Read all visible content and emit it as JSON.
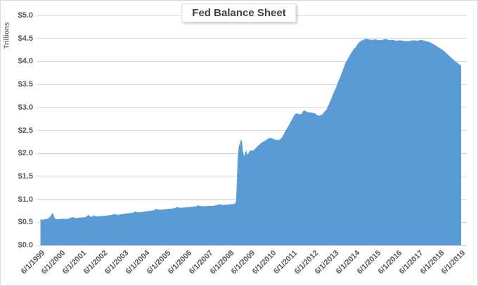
{
  "title": "Fed Balance Sheet",
  "axis": {
    "y_unit_label": "Trillions",
    "y_ticks": [
      "$5.0",
      "$4.5",
      "$4.0",
      "$3.5",
      "$3.0",
      "$2.5",
      "$2.0",
      "$1.5",
      "$1.0",
      "$0.5",
      "$0.0"
    ],
    "x_ticks": [
      "6/1/1999",
      "6/1/2000",
      "6/1/2001",
      "6/1/2002",
      "6/1/2003",
      "6/1/2004",
      "6/1/2005",
      "6/1/2006",
      "6/1/2007",
      "6/1/2008",
      "6/1/2009",
      "6/1/2010",
      "6/1/2011",
      "6/1/2012",
      "6/1/2013",
      "6/1/2014",
      "6/1/2015",
      "6/1/2016",
      "6/1/2017",
      "6/1/2018",
      "6/1/2019"
    ]
  },
  "colors": {
    "area_fill": "#5B9BD5",
    "gridline": "#D9D9D9",
    "axis_text": "#595959",
    "title_text": "#404040",
    "unit_text": "#737373",
    "border": "#D9D9D9"
  },
  "chart_data": {
    "type": "area",
    "title": "Fed Balance Sheet",
    "ylabel": "Trillions",
    "xlabel": "",
    "grid": true,
    "legend": false,
    "ylim": [
      0,
      5
    ],
    "y_tick_step": 0.5,
    "xlim": [
      1999.4167,
      2019.4167
    ],
    "x_unit": "decimal year (ticks at June 1 each year)",
    "value_unit": "trillions of dollars",
    "points": [
      [
        1999.42,
        0.57
      ],
      [
        1999.5,
        0.555
      ],
      [
        1999.58,
        0.56
      ],
      [
        1999.67,
        0.565
      ],
      [
        1999.75,
        0.575
      ],
      [
        1999.83,
        0.6
      ],
      [
        1999.92,
        0.645
      ],
      [
        2000.0,
        0.71
      ],
      [
        2000.05,
        0.64
      ],
      [
        2000.1,
        0.585
      ],
      [
        2000.17,
        0.57
      ],
      [
        2000.25,
        0.565
      ],
      [
        2000.33,
        0.57
      ],
      [
        2000.42,
        0.575
      ],
      [
        2000.5,
        0.58
      ],
      [
        2000.58,
        0.57
      ],
      [
        2000.67,
        0.575
      ],
      [
        2000.75,
        0.58
      ],
      [
        2000.83,
        0.59
      ],
      [
        2000.92,
        0.615
      ],
      [
        2001.0,
        0.605
      ],
      [
        2001.08,
        0.59
      ],
      [
        2001.17,
        0.595
      ],
      [
        2001.25,
        0.6
      ],
      [
        2001.33,
        0.6
      ],
      [
        2001.42,
        0.605
      ],
      [
        2001.5,
        0.61
      ],
      [
        2001.58,
        0.615
      ],
      [
        2001.7,
        0.66
      ],
      [
        2001.78,
        0.625
      ],
      [
        2001.87,
        0.62
      ],
      [
        2001.95,
        0.655
      ],
      [
        2002.04,
        0.63
      ],
      [
        2002.12,
        0.625
      ],
      [
        2002.21,
        0.63
      ],
      [
        2002.3,
        0.635
      ],
      [
        2002.42,
        0.64
      ],
      [
        2002.54,
        0.645
      ],
      [
        2002.62,
        0.65
      ],
      [
        2002.71,
        0.655
      ],
      [
        2002.83,
        0.66
      ],
      [
        2002.92,
        0.685
      ],
      [
        2003.0,
        0.67
      ],
      [
        2003.08,
        0.66
      ],
      [
        2003.21,
        0.67
      ],
      [
        2003.33,
        0.68
      ],
      [
        2003.46,
        0.69
      ],
      [
        2003.58,
        0.695
      ],
      [
        2003.71,
        0.7
      ],
      [
        2003.83,
        0.71
      ],
      [
        2003.92,
        0.735
      ],
      [
        2004.0,
        0.72
      ],
      [
        2004.08,
        0.715
      ],
      [
        2004.21,
        0.72
      ],
      [
        2004.33,
        0.73
      ],
      [
        2004.46,
        0.74
      ],
      [
        2004.58,
        0.745
      ],
      [
        2004.71,
        0.755
      ],
      [
        2004.83,
        0.765
      ],
      [
        2004.92,
        0.79
      ],
      [
        2005.0,
        0.775
      ],
      [
        2005.08,
        0.77
      ],
      [
        2005.21,
        0.775
      ],
      [
        2005.33,
        0.78
      ],
      [
        2005.46,
        0.79
      ],
      [
        2005.58,
        0.795
      ],
      [
        2005.71,
        0.8
      ],
      [
        2005.83,
        0.81
      ],
      [
        2005.92,
        0.835
      ],
      [
        2006.0,
        0.82
      ],
      [
        2006.08,
        0.815
      ],
      [
        2006.21,
        0.82
      ],
      [
        2006.33,
        0.825
      ],
      [
        2006.46,
        0.83
      ],
      [
        2006.58,
        0.835
      ],
      [
        2006.71,
        0.84
      ],
      [
        2006.83,
        0.85
      ],
      [
        2006.92,
        0.87
      ],
      [
        2007.0,
        0.855
      ],
      [
        2007.08,
        0.85
      ],
      [
        2007.21,
        0.85
      ],
      [
        2007.33,
        0.855
      ],
      [
        2007.46,
        0.86
      ],
      [
        2007.58,
        0.855
      ],
      [
        2007.71,
        0.865
      ],
      [
        2007.83,
        0.875
      ],
      [
        2007.92,
        0.89
      ],
      [
        2008.0,
        0.885
      ],
      [
        2008.08,
        0.875
      ],
      [
        2008.21,
        0.88
      ],
      [
        2008.33,
        0.885
      ],
      [
        2008.46,
        0.89
      ],
      [
        2008.58,
        0.895
      ],
      [
        2008.67,
        0.91
      ],
      [
        2008.72,
        0.97
      ],
      [
        2008.76,
        1.45
      ],
      [
        2008.8,
        1.95
      ],
      [
        2008.85,
        2.15
      ],
      [
        2008.9,
        2.21
      ],
      [
        2008.96,
        2.31
      ],
      [
        2009.0,
        2.24
      ],
      [
        2009.04,
        2.06
      ],
      [
        2009.1,
        1.93
      ],
      [
        2009.15,
        2.0
      ],
      [
        2009.19,
        2.07
      ],
      [
        2009.23,
        2.01
      ],
      [
        2009.27,
        1.96
      ],
      [
        2009.33,
        2.03
      ],
      [
        2009.42,
        2.07
      ],
      [
        2009.5,
        2.05
      ],
      [
        2009.58,
        2.08
      ],
      [
        2009.67,
        2.12
      ],
      [
        2009.75,
        2.16
      ],
      [
        2009.83,
        2.19
      ],
      [
        2009.92,
        2.23
      ],
      [
        2010.0,
        2.25
      ],
      [
        2010.08,
        2.27
      ],
      [
        2010.17,
        2.3
      ],
      [
        2010.25,
        2.32
      ],
      [
        2010.33,
        2.34
      ],
      [
        2010.42,
        2.33
      ],
      [
        2010.5,
        2.31
      ],
      [
        2010.58,
        2.3
      ],
      [
        2010.67,
        2.29
      ],
      [
        2010.75,
        2.29
      ],
      [
        2010.83,
        2.31
      ],
      [
        2010.92,
        2.36
      ],
      [
        2011.0,
        2.43
      ],
      [
        2011.08,
        2.5
      ],
      [
        2011.17,
        2.57
      ],
      [
        2011.25,
        2.63
      ],
      [
        2011.33,
        2.7
      ],
      [
        2011.42,
        2.77
      ],
      [
        2011.5,
        2.84
      ],
      [
        2011.58,
        2.87
      ],
      [
        2011.67,
        2.86
      ],
      [
        2011.75,
        2.85
      ],
      [
        2011.83,
        2.86
      ],
      [
        2011.92,
        2.93
      ],
      [
        2012.0,
        2.93
      ],
      [
        2012.08,
        2.9
      ],
      [
        2012.17,
        2.89
      ],
      [
        2012.25,
        2.89
      ],
      [
        2012.33,
        2.88
      ],
      [
        2012.42,
        2.88
      ],
      [
        2012.5,
        2.86
      ],
      [
        2012.58,
        2.83
      ],
      [
        2012.67,
        2.82
      ],
      [
        2012.75,
        2.83
      ],
      [
        2012.83,
        2.85
      ],
      [
        2012.92,
        2.91
      ],
      [
        2013.0,
        2.94
      ],
      [
        2013.08,
        3.02
      ],
      [
        2013.17,
        3.11
      ],
      [
        2013.25,
        3.2
      ],
      [
        2013.33,
        3.29
      ],
      [
        2013.42,
        3.38
      ],
      [
        2013.5,
        3.47
      ],
      [
        2013.58,
        3.57
      ],
      [
        2013.67,
        3.66
      ],
      [
        2013.75,
        3.76
      ],
      [
        2013.83,
        3.86
      ],
      [
        2013.92,
        3.97
      ],
      [
        2014.0,
        4.03
      ],
      [
        2014.08,
        4.1
      ],
      [
        2014.17,
        4.17
      ],
      [
        2014.25,
        4.23
      ],
      [
        2014.33,
        4.28
      ],
      [
        2014.42,
        4.32
      ],
      [
        2014.5,
        4.38
      ],
      [
        2014.58,
        4.42
      ],
      [
        2014.67,
        4.45
      ],
      [
        2014.75,
        4.47
      ],
      [
        2014.83,
        4.48
      ],
      [
        2014.92,
        4.5
      ],
      [
        2015.0,
        4.48
      ],
      [
        2015.17,
        4.47
      ],
      [
        2015.33,
        4.48
      ],
      [
        2015.5,
        4.46
      ],
      [
        2015.67,
        4.47
      ],
      [
        2015.83,
        4.49
      ],
      [
        2016.0,
        4.46
      ],
      [
        2016.17,
        4.47
      ],
      [
        2016.33,
        4.45
      ],
      [
        2016.5,
        4.46
      ],
      [
        2016.67,
        4.45
      ],
      [
        2016.83,
        4.44
      ],
      [
        2017.0,
        4.45
      ],
      [
        2017.17,
        4.46
      ],
      [
        2017.33,
        4.45
      ],
      [
        2017.5,
        4.47
      ],
      [
        2017.67,
        4.45
      ],
      [
        2017.83,
        4.43
      ],
      [
        2017.92,
        4.42
      ],
      [
        2018.0,
        4.4
      ],
      [
        2018.17,
        4.36
      ],
      [
        2018.33,
        4.31
      ],
      [
        2018.5,
        4.26
      ],
      [
        2018.67,
        4.2
      ],
      [
        2018.83,
        4.13
      ],
      [
        2019.0,
        4.06
      ],
      [
        2019.17,
        3.99
      ],
      [
        2019.33,
        3.94
      ],
      [
        2019.42,
        3.9
      ]
    ]
  }
}
